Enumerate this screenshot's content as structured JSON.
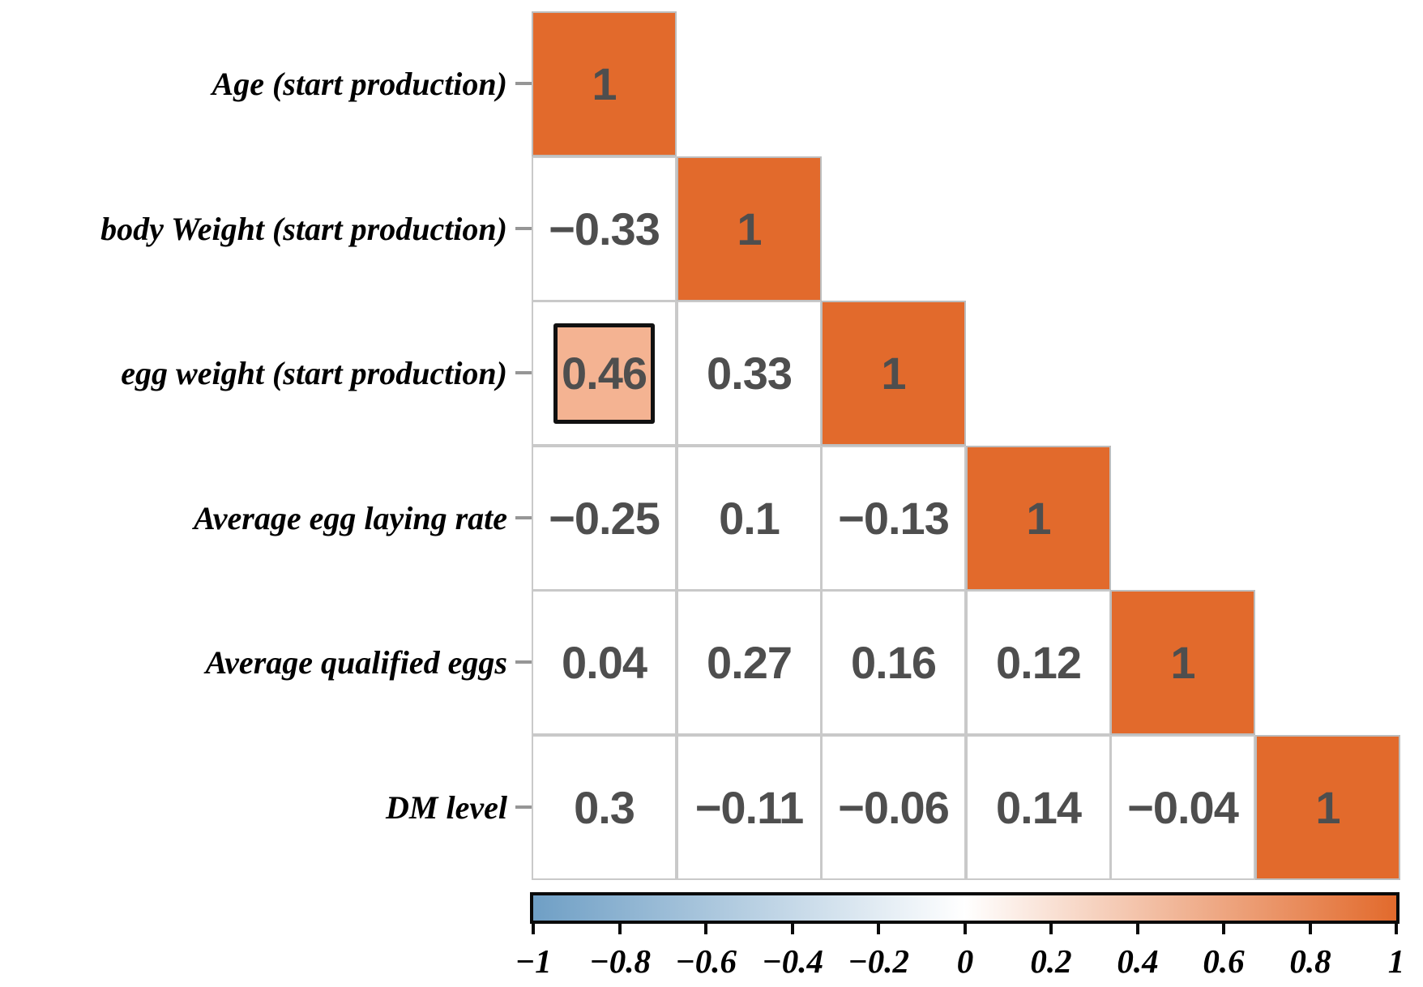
{
  "figure": {
    "background": "#ffffff",
    "kind": "correlation matrix plot"
  },
  "chart_data": {
    "type": "heatmap",
    "subtype": "lower-triangle correlation matrix",
    "title": "",
    "xlabel": "",
    "ylabel": "",
    "grid": true,
    "legend_position": "bottom",
    "variables": [
      "Age (start production)",
      "body Weight (start production)",
      "egg weight (start production)",
      "Average egg laying rate",
      "Average qualified eggs",
      "DM level"
    ],
    "matrix": [
      [
        1
      ],
      [
        -0.33,
        1
      ],
      [
        0.46,
        0.33,
        1
      ],
      [
        -0.25,
        0.1,
        -0.13,
        1
      ],
      [
        0.04,
        0.27,
        0.16,
        0.12,
        1
      ],
      [
        0.3,
        -0.11,
        -0.06,
        0.14,
        -0.04,
        1
      ]
    ],
    "matrix_display": [
      [
        "1"
      ],
      [
        "−0.33",
        "1"
      ],
      [
        "0.46",
        "0.33",
        "1"
      ],
      [
        "−0.25",
        "0.1",
        "−0.13",
        "1"
      ],
      [
        "0.04",
        "0.27",
        "0.16",
        "0.12",
        "1"
      ],
      [
        "0.3",
        "−0.11",
        "−0.06",
        "0.14",
        "−0.04",
        "1"
      ]
    ],
    "highlighted_cell": {
      "row_index": 2,
      "col_index": 0,
      "value": 0.46,
      "display": "0.46",
      "style": "colored inset square with black outline"
    },
    "colorbar": {
      "orientation": "horizontal",
      "min": -1,
      "max": 1,
      "tick_labels": [
        "−1",
        "−0.8",
        "−0.6",
        "−0.4",
        "−0.2",
        "0",
        "0.2",
        "0.4",
        "0.6",
        "0.8",
        "1"
      ]
    },
    "colors": {
      "diagonal_fill": "#e26a2c",
      "highlight_fill": "#f4b392",
      "cell_fill": "#ffffff",
      "grid_line": "#c9c9c9",
      "value_text": "#4e4e4e",
      "label_text": "#000000",
      "negative_end": "#6f9fc5",
      "midpoint": "#ffffff",
      "positive_end": "#e26a2c"
    }
  }
}
